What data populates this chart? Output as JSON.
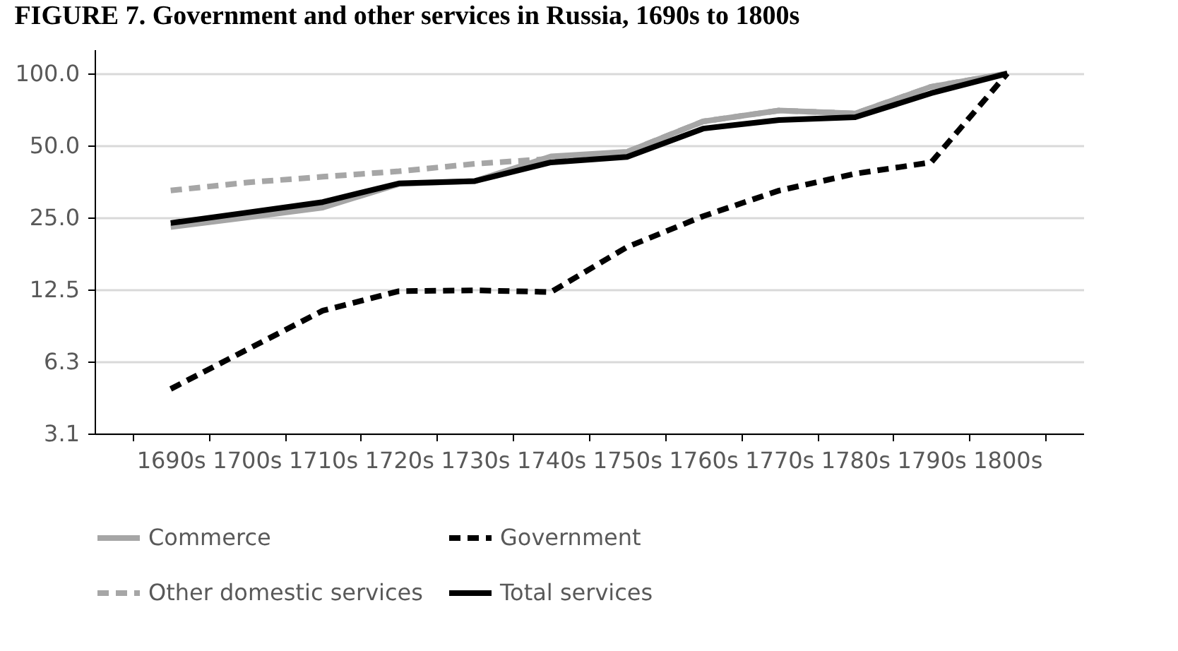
{
  "chart_data": {
    "type": "line",
    "title": "FIGURE 7. Government and other services in Russia, 1690s to 1800s",
    "categories": [
      "1690s",
      "1700s",
      "1710s",
      "1720s",
      "1730s",
      "1740s",
      "1750s",
      "1760s",
      "1770s",
      "1780s",
      "1790s",
      "1800s"
    ],
    "series": [
      {
        "name": "Commerce",
        "color": "#a6a6a6",
        "line_style": "solid",
        "values": [
          22.8,
          25,
          27.5,
          34.5,
          35.5,
          45,
          47,
          63,
          70,
          68,
          88,
          100
        ]
      },
      {
        "name": "Government",
        "color": "#000000",
        "line_style": "dashed",
        "values": [
          4.8,
          7,
          10.2,
          12.3,
          12.4,
          12.2,
          18.8,
          25.3,
          32.4,
          38.1,
          42.5,
          100
        ]
      },
      {
        "name": "Other domestic services",
        "color": "#a6a6a6",
        "line_style": "dashed",
        "values": [
          32.4,
          35,
          37,
          39,
          41.9,
          44,
          47,
          63,
          70,
          68,
          88,
          100
        ]
      },
      {
        "name": "Total services",
        "color": "#000000",
        "line_style": "solid",
        "values": [
          23.7,
          26.2,
          29,
          34.7,
          35.5,
          42.5,
          44.8,
          58.8,
          63.9,
          65.6,
          82.7,
          100
        ]
      }
    ],
    "log": "y",
    "ylim": [
      3.125,
      126
    ],
    "yticks": [
      {
        "value": 3.125,
        "label": "3.1"
      },
      {
        "value": 6.25,
        "label": "6.3"
      },
      12.5,
      {
        "value": 25,
        "label": "25.0"
      },
      {
        "value": 50,
        "label": "50.0"
      },
      {
        "value": 100,
        "label": "100.0"
      }
    ],
    "grid": "y",
    "legend": "bottom",
    "marker": "none"
  }
}
